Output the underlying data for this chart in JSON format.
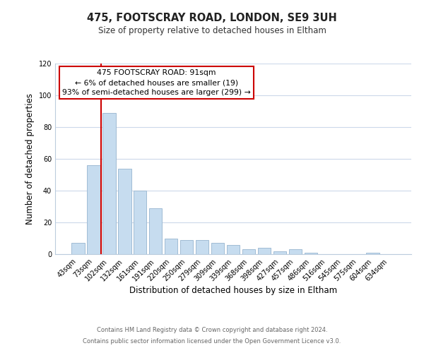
{
  "title": "475, FOOTSCRAY ROAD, LONDON, SE9 3UH",
  "subtitle": "Size of property relative to detached houses in Eltham",
  "xlabel": "Distribution of detached houses by size in Eltham",
  "ylabel": "Number of detached properties",
  "bar_labels": [
    "43sqm",
    "73sqm",
    "102sqm",
    "132sqm",
    "161sqm",
    "191sqm",
    "220sqm",
    "250sqm",
    "279sqm",
    "309sqm",
    "339sqm",
    "368sqm",
    "398sqm",
    "427sqm",
    "457sqm",
    "486sqm",
    "516sqm",
    "545sqm",
    "575sqm",
    "604sqm",
    "634sqm"
  ],
  "bar_values": [
    7,
    56,
    89,
    54,
    40,
    29,
    10,
    9,
    9,
    7,
    6,
    3,
    4,
    2,
    3,
    1,
    0,
    0,
    0,
    1,
    0
  ],
  "bar_color": "#c6dcef",
  "bar_edge_color": "#a0bcd4",
  "vline_x": 1.5,
  "vline_color": "#cc0000",
  "ylim": [
    0,
    120
  ],
  "yticks": [
    0,
    20,
    40,
    60,
    80,
    100,
    120
  ],
  "annotation_title": "475 FOOTSCRAY ROAD: 91sqm",
  "annotation_line1": "← 6% of detached houses are smaller (19)",
  "annotation_line2": "93% of semi-detached houses are larger (299) →",
  "footer1": "Contains HM Land Registry data © Crown copyright and database right 2024.",
  "footer2": "Contains public sector information licensed under the Open Government Licence v3.0.",
  "background_color": "#ffffff",
  "grid_color": "#ccd8ea"
}
